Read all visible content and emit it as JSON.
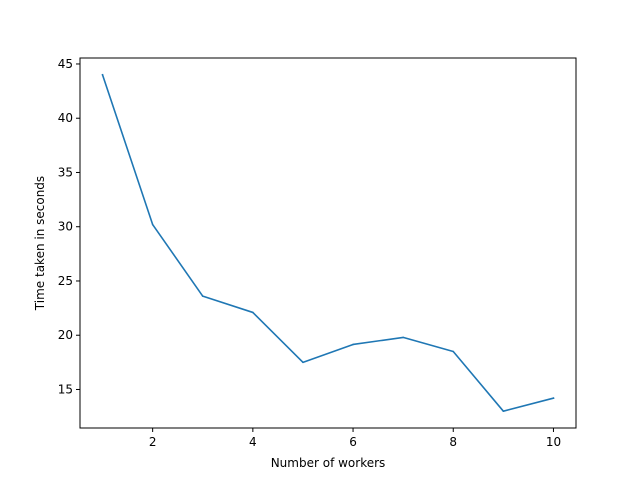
{
  "chart_data": {
    "type": "line",
    "title": "",
    "xlabel": "Number of workers",
    "ylabel": "Time taken in seconds",
    "x": [
      1,
      2,
      3,
      4,
      5,
      6,
      7,
      8,
      9,
      10
    ],
    "series": [
      {
        "values": [
          44.0,
          30.2,
          23.6,
          22.1,
          17.5,
          19.15,
          19.8,
          18.5,
          13.0,
          14.2
        ],
        "color": "#1f77b4"
      }
    ],
    "xlim": [
      0.55,
      10.45
    ],
    "ylim": [
      11.45,
      45.55
    ],
    "xticks": [
      2,
      4,
      6,
      8,
      10
    ],
    "yticks": [
      15,
      20,
      25,
      30,
      35,
      40,
      45
    ],
    "xtick_labels": [
      "2",
      "4",
      "6",
      "8",
      "10"
    ],
    "ytick_labels": [
      "15",
      "20",
      "25",
      "30",
      "35",
      "40",
      "45"
    ],
    "grid": false,
    "legend": "none"
  }
}
